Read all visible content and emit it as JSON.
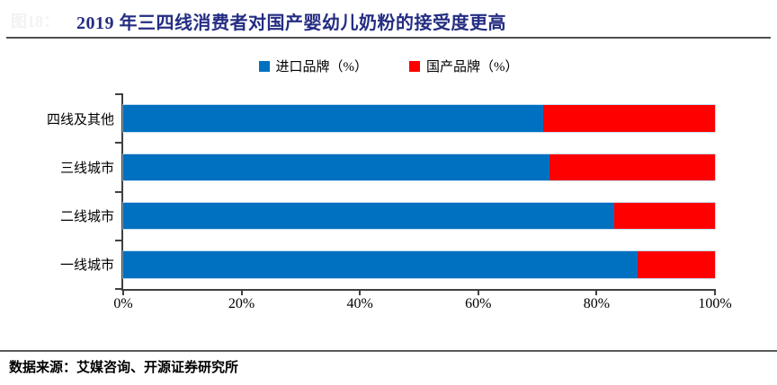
{
  "figure_label": "图18：",
  "header": {
    "title": "2019 年三四线消费者对国产婴幼儿奶粉的接受度更高",
    "title_color": "#242d82"
  },
  "legend": {
    "items": [
      {
        "label": "进口品牌（%）",
        "color": "#0070C0"
      },
      {
        "label": "国产品牌（%）",
        "color": "#FF0000"
      }
    ]
  },
  "chart_data": {
    "type": "bar",
    "orientation": "horizontal",
    "stacked": true,
    "title": "2019 年三四线消费者对国产婴幼儿奶粉的接受度更高",
    "categories": [
      "四线及其他",
      "三线城市",
      "二线城市",
      "一线城市"
    ],
    "series": [
      {
        "name": "进口品牌（%）",
        "color": "#0070C0",
        "values": [
          71,
          72,
          83,
          87
        ]
      },
      {
        "name": "国产品牌（%）",
        "color": "#FF0000",
        "values": [
          29,
          28,
          17,
          13
        ]
      }
    ],
    "xlabel": "",
    "ylabel": "",
    "xlim": [
      0,
      100
    ],
    "x_ticks": [
      "0%",
      "20%",
      "40%",
      "60%",
      "80%",
      "100%"
    ],
    "grid": false,
    "legend_position": "top-center"
  },
  "footer": {
    "source": "数据来源：艾媒咨询、开源证券研究所"
  }
}
